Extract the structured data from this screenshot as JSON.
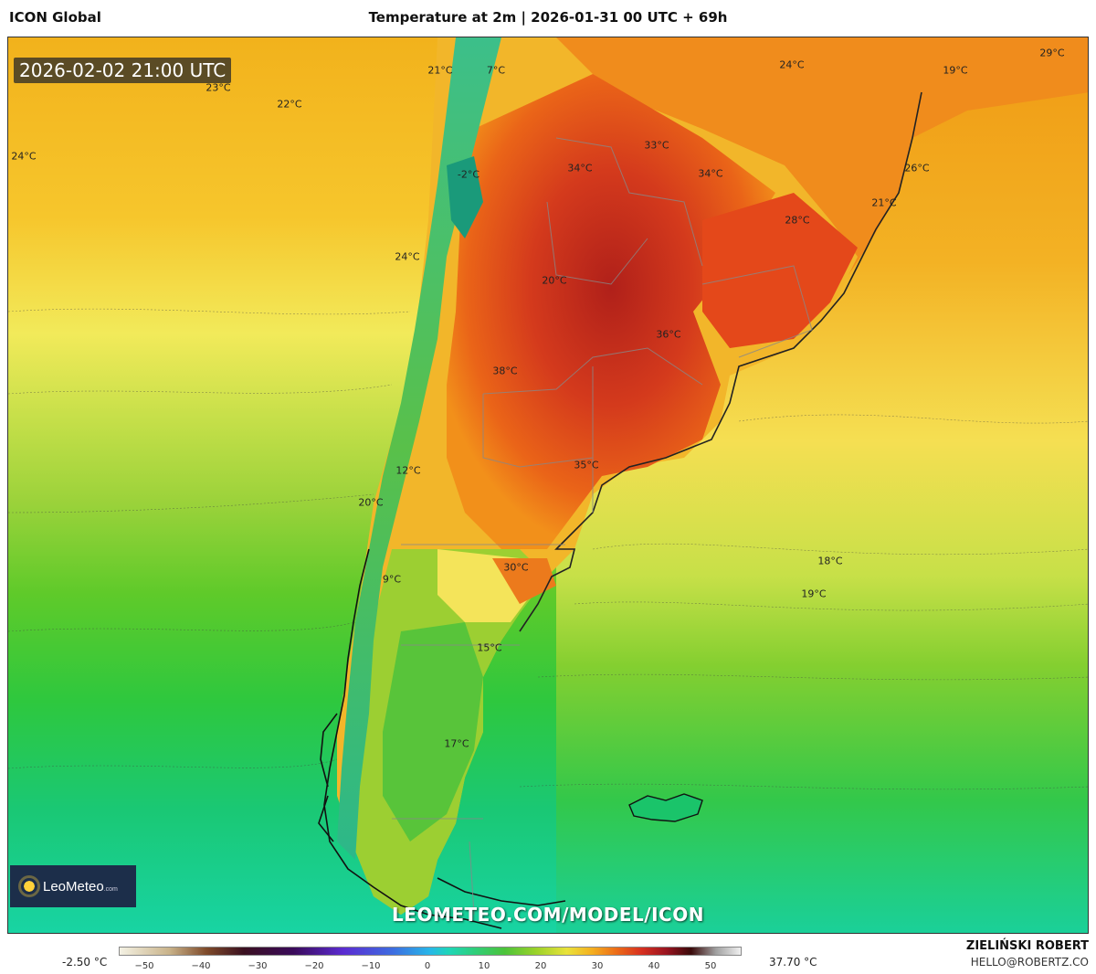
{
  "header": {
    "app_title": "ICON Global",
    "chart_title": "Temperature at 2m | 2026-01-31 00 UTC + 69h"
  },
  "map": {
    "timestamp": "2026-02-02 21:00 UTC",
    "watermark_url": "LEOMETEO.COM/MODEL/ICON",
    "logo_text": "LeoMeteo",
    "logo_suffix": ".com",
    "temperature_labels": [
      {
        "text": "21°C"
      },
      {
        "text": "7°C"
      },
      {
        "text": "23°C"
      },
      {
        "text": "22°C"
      },
      {
        "text": "24°C"
      },
      {
        "text": "-2°C"
      },
      {
        "text": "24°C"
      },
      {
        "text": "33°C"
      },
      {
        "text": "34°C"
      },
      {
        "text": "34°C"
      },
      {
        "text": "24°C"
      },
      {
        "text": "19°C"
      },
      {
        "text": "29°C"
      },
      {
        "text": "26°C"
      },
      {
        "text": "21°C"
      },
      {
        "text": "28°C"
      },
      {
        "text": "20°C"
      },
      {
        "text": "36°C"
      },
      {
        "text": "38°C"
      },
      {
        "text": "35°C"
      },
      {
        "text": "12°C"
      },
      {
        "text": "20°C"
      },
      {
        "text": "30°C"
      },
      {
        "text": "9°C"
      },
      {
        "text": "18°C"
      },
      {
        "text": "19°C"
      },
      {
        "text": "15°C"
      },
      {
        "text": "17°C"
      }
    ]
  },
  "legend": {
    "min_label": "-2.50 °C",
    "max_label": "37.70 °C",
    "ticks": [
      "−50",
      "−40",
      "−30",
      "−20",
      "−10",
      "0",
      "10",
      "20",
      "30",
      "40",
      "50"
    ]
  },
  "footer": {
    "author": "ZIELIŃSKI ROBERT",
    "email": "HELLO@ROBERTZ.CO"
  }
}
